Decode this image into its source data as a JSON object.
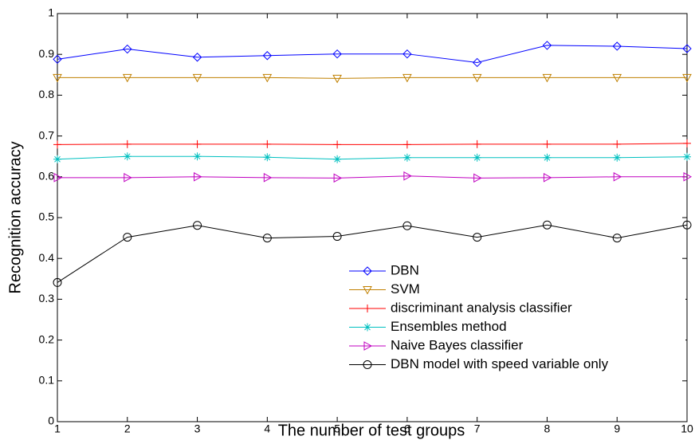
{
  "chart_data": {
    "type": "line",
    "xlabel": "The number of test groups",
    "ylabel": "Recognition accuracy",
    "x": [
      1,
      2,
      3,
      4,
      5,
      6,
      7,
      8,
      9,
      10
    ],
    "xlim": [
      1,
      10
    ],
    "xticks": [
      1,
      2,
      3,
      4,
      5,
      6,
      7,
      8,
      9,
      10
    ],
    "ylim": [
      0,
      1
    ],
    "yticks": [
      0,
      0.1,
      0.2,
      0.3,
      0.4,
      0.5,
      0.6,
      0.7,
      0.8,
      0.9,
      1
    ],
    "grid": false,
    "legend": "lower right",
    "series": [
      {
        "name": "DBN",
        "color": "#0000ff",
        "marker": "diamond",
        "values": [
          0.888,
          0.913,
          0.893,
          0.897,
          0.901,
          0.901,
          0.88,
          0.922,
          0.92,
          0.914
        ]
      },
      {
        "name": "SVM",
        "color": "#c08000",
        "marker": "triangle-down",
        "values": [
          0.843,
          0.843,
          0.843,
          0.843,
          0.841,
          0.843,
          0.843,
          0.843,
          0.843,
          0.843
        ]
      },
      {
        "name": "discriminant analysis classifier",
        "color": "#ff0000",
        "marker": "plus",
        "values": [
          0.679,
          0.68,
          0.68,
          0.68,
          0.679,
          0.679,
          0.68,
          0.68,
          0.68,
          0.682
        ]
      },
      {
        "name": "Ensembles method",
        "color": "#00c0c0",
        "marker": "asterisk",
        "values": [
          0.643,
          0.65,
          0.65,
          0.648,
          0.643,
          0.647,
          0.647,
          0.647,
          0.647,
          0.649
        ]
      },
      {
        "name": "Naive Bayes classifier",
        "color": "#c000c0",
        "marker": "triangle-right",
        "values": [
          0.598,
          0.598,
          0.6,
          0.598,
          0.597,
          0.602,
          0.597,
          0.598,
          0.6,
          0.6
        ]
      },
      {
        "name": "DBN model with speed variable only",
        "color": "#000000",
        "marker": "circle",
        "values": [
          0.341,
          0.452,
          0.481,
          0.45,
          0.454,
          0.48,
          0.452,
          0.482,
          0.45,
          0.482
        ]
      }
    ]
  }
}
